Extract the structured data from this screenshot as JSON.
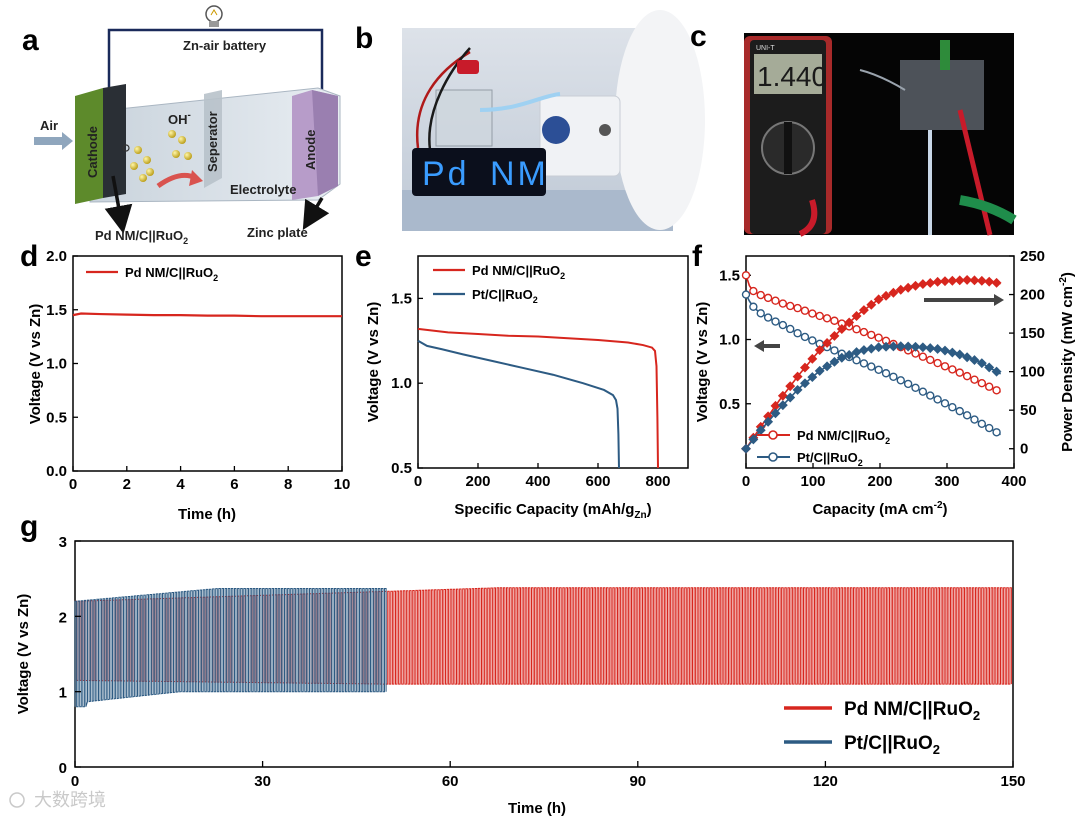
{
  "colors": {
    "red": "#d7261e",
    "blue": "#2d5b83",
    "blue_light": "#4a85b8",
    "dark_red": "#c41a16"
  },
  "panel_labels": {
    "a": "a",
    "b": "b",
    "c": "c",
    "d": "d",
    "e": "e",
    "f": "f",
    "g": "g"
  },
  "schematic": {
    "title": "Zn-air battery",
    "air": "Air",
    "cathode": "Cathode",
    "separator": "Seperator",
    "anode": "Anode",
    "electrolyte": "Electrolyte",
    "ion": "OH",
    "ion_sup": "-",
    "cathode_material": "Pd NM/C||RuO",
    "cathode_material_sub": "2",
    "anode_material": "Zinc plate"
  },
  "photo_b": {
    "display_left": "Pd",
    "display_right": "NM"
  },
  "photo_c": {
    "meter_reading": "1.440",
    "meter_brand": "UNI-T"
  },
  "chart_data": [
    {
      "id": "d",
      "type": "line",
      "xlabel": "Time (h)",
      "ylabel": "Voltage (V vs Zn)",
      "xlim": [
        0,
        10
      ],
      "ylim": [
        0.0,
        2.0
      ],
      "xticks": [
        0,
        2,
        4,
        6,
        8,
        10
      ],
      "yticks": [
        0.0,
        0.5,
        1.0,
        1.5,
        2.0
      ],
      "ytick_labels": [
        "0.0",
        "0.5",
        "1.0",
        "1.5",
        "2.0"
      ],
      "legend": "top-left",
      "series": [
        {
          "name": "Pd NM/C||RuO",
          "name_sub": "2",
          "color": "#d7261e",
          "x": [
            0,
            0.3,
            1,
            2,
            3,
            4,
            5,
            6,
            7,
            8,
            9,
            10
          ],
          "y": [
            1.45,
            1.465,
            1.46,
            1.455,
            1.45,
            1.45,
            1.445,
            1.445,
            1.44,
            1.44,
            1.44,
            1.44
          ]
        }
      ]
    },
    {
      "id": "e",
      "type": "line",
      "xlabel": "Specific Capacity (mAh/g",
      "xlabel_sub": "Zn",
      "xlabel_end": ")",
      "ylabel": "Voltage (V vs Zn)",
      "xlim": [
        0,
        900
      ],
      "ylim": [
        0.5,
        1.75
      ],
      "xticks": [
        0,
        200,
        400,
        600,
        800
      ],
      "yticks": [
        0.5,
        1.0,
        1.5
      ],
      "ytick_labels": [
        "0.5",
        "1.0",
        "1.5"
      ],
      "legend": "top-left",
      "series": [
        {
          "name": "Pd NM/C||RuO",
          "name_sub": "2",
          "color": "#d7261e",
          "x": [
            0,
            50,
            100,
            200,
            300,
            400,
            500,
            600,
            700,
            750,
            780,
            790,
            795,
            798,
            800
          ],
          "y": [
            1.32,
            1.31,
            1.3,
            1.29,
            1.28,
            1.275,
            1.265,
            1.255,
            1.24,
            1.225,
            1.21,
            1.19,
            1.1,
            0.8,
            0.5
          ]
        },
        {
          "name": "Pt/C||RuO",
          "name_sub": "2",
          "color": "#2d5b83",
          "x": [
            0,
            30,
            80,
            150,
            250,
            350,
            450,
            550,
            620,
            650,
            660,
            665,
            668,
            670
          ],
          "y": [
            1.25,
            1.22,
            1.2,
            1.17,
            1.13,
            1.09,
            1.05,
            1.0,
            0.96,
            0.93,
            0.9,
            0.85,
            0.7,
            0.5
          ]
        }
      ]
    },
    {
      "id": "f",
      "type": "line",
      "xlabel": "Capacity (mA cm",
      "xlabel_sup": "-2",
      "xlabel_end": ")",
      "ylabel": "Voltage (V vs Zn)",
      "ylabel_right": "Power Density (mW cm",
      "ylabel_right_sup": "-2",
      "ylabel_right_end": ")",
      "xlim": [
        0,
        400
      ],
      "ylim": [
        0.0,
        1.65
      ],
      "ylim_right": [
        -25,
        250
      ],
      "xticks": [
        0,
        100,
        200,
        300,
        400
      ],
      "yticks": [
        0.5,
        1.0,
        1.5
      ],
      "ytick_labels": [
        "0.5",
        "1.0",
        "1.5"
      ],
      "yticks_right": [
        0,
        50,
        100,
        150,
        200,
        250
      ],
      "legend": "bottom-left",
      "series": [
        {
          "name": "Pd NM/C||RuO",
          "name_sub": "2",
          "kind": "voltage",
          "color": "#d7261e",
          "x": [
            0,
            5,
            10,
            20,
            40,
            60,
            80,
            100,
            130,
            160,
            200,
            240,
            280,
            320,
            360,
            380
          ],
          "y": [
            1.5,
            1.42,
            1.38,
            1.35,
            1.31,
            1.27,
            1.24,
            1.2,
            1.15,
            1.09,
            1.01,
            0.92,
            0.83,
            0.74,
            0.64,
            0.59
          ]
        },
        {
          "name": "Pt/C||RuO",
          "name_sub": "2",
          "kind": "voltage",
          "color": "#2d5b83",
          "x": [
            0,
            5,
            10,
            20,
            40,
            60,
            80,
            100,
            130,
            160,
            200,
            240,
            280,
            320,
            360,
            380
          ],
          "y": [
            1.35,
            1.3,
            1.26,
            1.21,
            1.15,
            1.1,
            1.04,
            0.99,
            0.92,
            0.85,
            0.76,
            0.66,
            0.55,
            0.44,
            0.32,
            0.26
          ]
        },
        {
          "name": "Pd NM/C||RuO",
          "name_sub": "2",
          "kind": "power",
          "color": "#d7261e",
          "x": [
            0,
            20,
            50,
            80,
            110,
            140,
            170,
            200,
            230,
            260,
            290,
            310,
            330,
            350,
            370,
            380
          ],
          "y": [
            0,
            26,
            63,
            97,
            128,
            153,
            176,
            195,
            206,
            213,
            217,
            218,
            219,
            218,
            216,
            214
          ]
        },
        {
          "name": "Pt/C||RuO",
          "name_sub": "2",
          "kind": "power",
          "color": "#2d5b83",
          "x": [
            0,
            20,
            50,
            80,
            110,
            140,
            170,
            200,
            230,
            260,
            290,
            320,
            350,
            380
          ],
          "y": [
            0,
            22,
            52,
            79,
            101,
            117,
            127,
            132,
            133,
            132,
            129,
            122,
            112,
            97
          ]
        }
      ]
    },
    {
      "id": "g",
      "type": "line",
      "xlabel": "Time (h)",
      "ylabel": "Voltage (V vs Zn)",
      "xlim": [
        0,
        150
      ],
      "ylim": [
        0,
        3
      ],
      "xticks": [
        0,
        30,
        60,
        90,
        120,
        150
      ],
      "yticks": [
        0,
        1,
        2,
        3
      ],
      "ytick_labels": [
        "0",
        "1",
        "2",
        "3"
      ],
      "legend": "bottom-right",
      "series": [
        {
          "name": "Pd NM/C||RuO",
          "name_sub": "2",
          "color": "#d7261e",
          "x_end": 150,
          "charge_v": [
            2.2,
            2.38
          ],
          "discharge_v": [
            1.15,
            1.1
          ]
        },
        {
          "name": "Pt/C||RuO",
          "name_sub": "2",
          "color": "#2d5b83",
          "x_end": 50,
          "charge_v": [
            2.2,
            2.37
          ],
          "discharge_v": [
            0.85,
            1.0
          ]
        }
      ]
    }
  ],
  "watermark": "大数跨境"
}
